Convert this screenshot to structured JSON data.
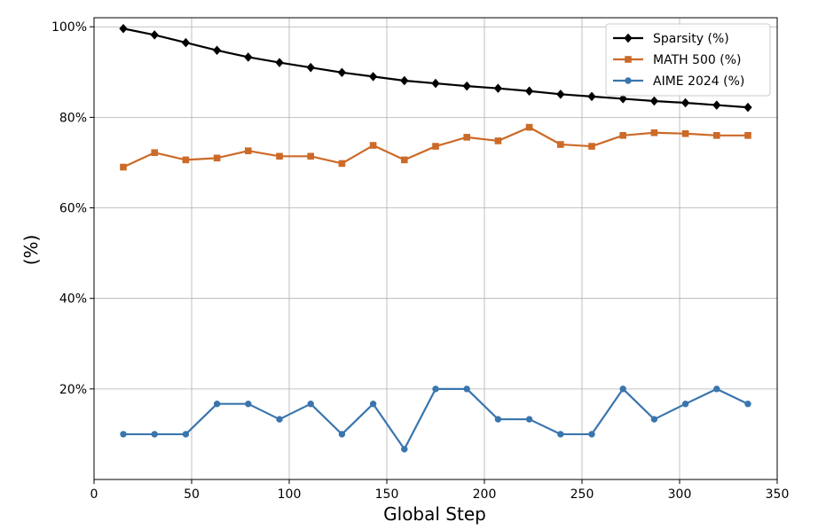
{
  "chart_data": {
    "type": "line",
    "title": "",
    "xlabel": "Global Step",
    "ylabel": "(%)",
    "xlim": [
      0,
      350
    ],
    "ylim": [
      0,
      102
    ],
    "x_ticks": [
      0,
      50,
      100,
      150,
      200,
      250,
      300,
      350
    ],
    "y_ticks": [
      20,
      40,
      60,
      80,
      100
    ],
    "y_tick_labels": [
      "20%",
      "40%",
      "60%",
      "80%",
      "100%"
    ],
    "grid": true,
    "legend_position": "top-right",
    "x": [
      15,
      31,
      47,
      63,
      79,
      95,
      111,
      127,
      143,
      159,
      175,
      191,
      207,
      223,
      239,
      255,
      271,
      287,
      303,
      319,
      335
    ],
    "series": [
      {
        "name": "Sparsity (%)",
        "color": "#000000",
        "marker": "diamond",
        "values": [
          99.6,
          98.2,
          96.5,
          94.8,
          93.3,
          92.1,
          91.0,
          89.9,
          89.0,
          88.1,
          87.5,
          86.9,
          86.4,
          85.8,
          85.1,
          84.6,
          84.1,
          83.6,
          83.2,
          82.7,
          82.2
        ]
      },
      {
        "name": "MATH 500 (%)",
        "color": "#cc6a28",
        "marker": "square",
        "values": [
          69.0,
          72.2,
          70.6,
          71.0,
          72.6,
          71.4,
          71.4,
          69.8,
          73.8,
          70.6,
          73.6,
          75.6,
          74.8,
          77.8,
          74.0,
          73.6,
          76.0,
          76.6,
          76.4,
          76.0,
          76.0
        ]
      },
      {
        "name": "AIME 2024 (%)",
        "color": "#3a75ad",
        "marker": "circle",
        "values": [
          10.0,
          10.0,
          10.0,
          16.7,
          16.7,
          13.3,
          16.7,
          10.0,
          16.7,
          6.7,
          20.0,
          20.0,
          13.3,
          13.3,
          10.0,
          10.0,
          20.0,
          13.3,
          16.7,
          20.0,
          16.7
        ]
      }
    ]
  }
}
